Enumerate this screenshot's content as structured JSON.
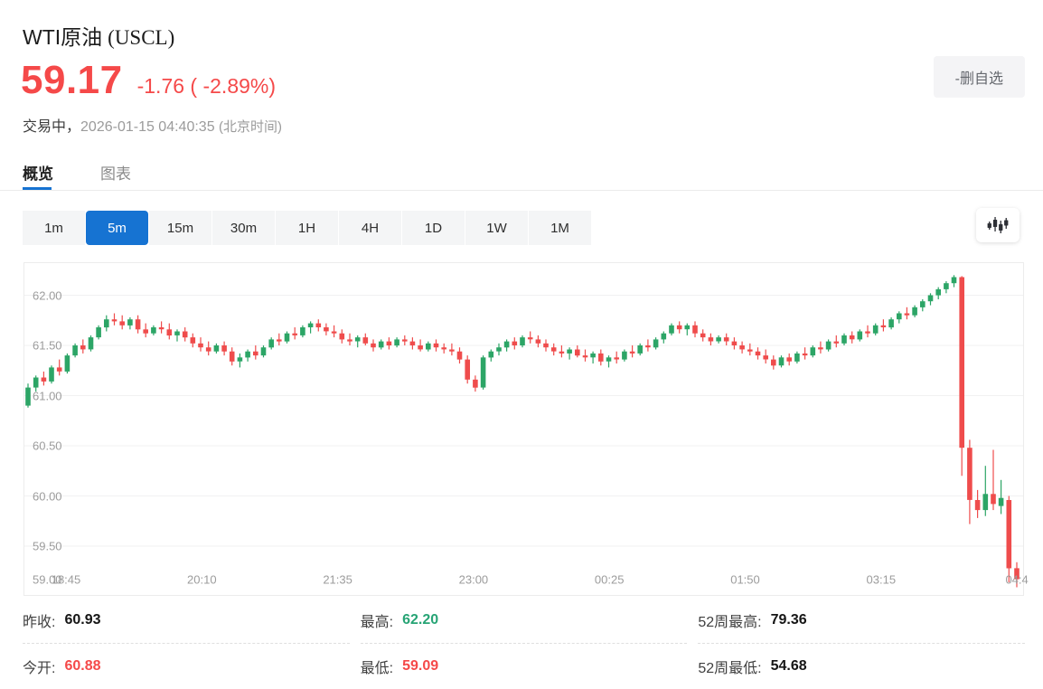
{
  "header": {
    "title": "WTI原油",
    "symbol": "(USCL)",
    "price": "59.17",
    "change": "-1.76 ( -2.89%)",
    "status": "交易中，",
    "datetime": "2026-01-15 04:40:35",
    "timezone": "(北京时间)",
    "remove_watchlist_label": "-删自选"
  },
  "tabs": {
    "overview": "概览",
    "chart": "图表"
  },
  "timeframes": [
    "1m",
    "5m",
    "15m",
    "30m",
    "1H",
    "4H",
    "1D",
    "1W",
    "1M"
  ],
  "selected_timeframe": "5m",
  "accent_blue": "#1673d2",
  "chart_data": {
    "type": "candlestick",
    "interval": "5m",
    "y_ticks": [
      "62.00",
      "61.50",
      "61.00",
      "60.50",
      "60.00",
      "59.50",
      "59.00"
    ],
    "x_ticks": [
      "18:45",
      "20:10",
      "21:35",
      "23:00",
      "00:25",
      "01:50",
      "03:15",
      "04:4"
    ],
    "ylim": [
      59.0,
      62.32
    ],
    "grid": true,
    "up_color": "#2ca566",
    "down_color": "#ef4c4c",
    "candles": [
      [
        60.9,
        61.12,
        60.88,
        61.08
      ],
      [
        61.08,
        61.2,
        61.04,
        61.18
      ],
      [
        61.18,
        61.24,
        61.1,
        61.14
      ],
      [
        61.14,
        61.3,
        61.12,
        61.28
      ],
      [
        61.28,
        61.36,
        61.2,
        61.24
      ],
      [
        61.24,
        61.42,
        61.22,
        61.4
      ],
      [
        61.4,
        61.52,
        61.38,
        61.5
      ],
      [
        61.5,
        61.56,
        61.42,
        61.46
      ],
      [
        61.46,
        61.6,
        61.44,
        61.58
      ],
      [
        61.58,
        61.7,
        61.56,
        61.68
      ],
      [
        61.68,
        61.8,
        61.64,
        61.76
      ],
      [
        61.76,
        61.82,
        61.7,
        61.74
      ],
      [
        61.74,
        61.8,
        61.66,
        61.7
      ],
      [
        61.7,
        61.78,
        61.66,
        61.76
      ],
      [
        61.76,
        61.8,
        61.62,
        61.66
      ],
      [
        61.66,
        61.72,
        61.58,
        61.62
      ],
      [
        61.62,
        61.7,
        61.6,
        61.68
      ],
      [
        61.68,
        61.74,
        61.62,
        61.66
      ],
      [
        61.66,
        61.72,
        61.56,
        61.6
      ],
      [
        61.6,
        61.66,
        61.54,
        61.64
      ],
      [
        61.64,
        61.68,
        61.54,
        61.58
      ],
      [
        61.58,
        61.62,
        61.48,
        61.52
      ],
      [
        61.52,
        61.58,
        61.44,
        61.48
      ],
      [
        61.48,
        61.54,
        61.4,
        61.44
      ],
      [
        61.44,
        61.52,
        61.42,
        61.5
      ],
      [
        61.5,
        61.54,
        61.4,
        61.44
      ],
      [
        61.44,
        61.48,
        61.3,
        61.34
      ],
      [
        61.34,
        61.42,
        61.28,
        61.38
      ],
      [
        61.38,
        61.46,
        61.34,
        61.44
      ],
      [
        61.44,
        61.5,
        61.36,
        61.4
      ],
      [
        61.4,
        61.5,
        61.38,
        61.48
      ],
      [
        61.48,
        61.58,
        61.46,
        61.56
      ],
      [
        61.56,
        61.62,
        61.5,
        61.54
      ],
      [
        61.54,
        61.64,
        61.52,
        61.62
      ],
      [
        61.62,
        61.68,
        61.56,
        61.6
      ],
      [
        61.6,
        61.7,
        61.58,
        61.68
      ],
      [
        61.68,
        61.74,
        61.62,
        61.72
      ],
      [
        61.72,
        61.76,
        61.64,
        61.68
      ],
      [
        61.68,
        61.72,
        61.6,
        61.64
      ],
      [
        61.64,
        61.7,
        61.58,
        61.62
      ],
      [
        61.62,
        61.66,
        61.52,
        61.56
      ],
      [
        61.56,
        61.62,
        61.5,
        61.54
      ],
      [
        61.54,
        61.6,
        61.48,
        61.58
      ],
      [
        61.58,
        61.62,
        61.5,
        61.52
      ],
      [
        61.52,
        61.56,
        61.44,
        61.48
      ],
      [
        61.48,
        61.56,
        61.46,
        61.54
      ],
      [
        61.54,
        61.58,
        61.46,
        61.5
      ],
      [
        61.5,
        61.58,
        61.48,
        61.56
      ],
      [
        61.56,
        61.6,
        61.5,
        61.54
      ],
      [
        61.54,
        61.58,
        61.46,
        61.5
      ],
      [
        61.5,
        61.56,
        61.44,
        61.46
      ],
      [
        61.46,
        61.54,
        61.44,
        61.52
      ],
      [
        61.52,
        61.56,
        61.44,
        61.48
      ],
      [
        61.48,
        61.52,
        61.42,
        61.46
      ],
      [
        61.46,
        61.52,
        61.4,
        61.44
      ],
      [
        61.44,
        61.48,
        61.32,
        61.36
      ],
      [
        61.36,
        61.4,
        61.12,
        61.16
      ],
      [
        61.16,
        61.2,
        61.04,
        61.08
      ],
      [
        61.08,
        61.4,
        61.06,
        61.38
      ],
      [
        61.38,
        61.46,
        61.34,
        61.44
      ],
      [
        61.44,
        61.52,
        61.4,
        61.48
      ],
      [
        61.48,
        61.56,
        61.44,
        61.54
      ],
      [
        61.54,
        61.58,
        61.46,
        61.5
      ],
      [
        61.5,
        61.6,
        61.48,
        61.58
      ],
      [
        61.58,
        61.64,
        61.52,
        61.56
      ],
      [
        61.56,
        61.6,
        61.48,
        61.52
      ],
      [
        61.52,
        61.56,
        61.44,
        61.48
      ],
      [
        61.48,
        61.52,
        61.4,
        61.44
      ],
      [
        61.44,
        61.5,
        61.38,
        61.42
      ],
      [
        61.42,
        61.48,
        61.36,
        61.46
      ],
      [
        61.46,
        61.5,
        61.38,
        61.4
      ],
      [
        61.4,
        61.46,
        61.34,
        61.38
      ],
      [
        61.38,
        61.44,
        61.32,
        61.42
      ],
      [
        61.42,
        61.46,
        61.3,
        61.34
      ],
      [
        61.34,
        61.4,
        61.28,
        61.38
      ],
      [
        61.38,
        61.44,
        61.32,
        61.36
      ],
      [
        61.36,
        61.46,
        61.34,
        61.44
      ],
      [
        61.44,
        61.5,
        61.38,
        61.42
      ],
      [
        61.42,
        61.52,
        61.4,
        61.5
      ],
      [
        61.5,
        61.56,
        61.44,
        61.48
      ],
      [
        61.48,
        61.58,
        61.46,
        61.56
      ],
      [
        61.56,
        61.64,
        61.52,
        61.62
      ],
      [
        61.62,
        61.72,
        61.6,
        61.7
      ],
      [
        61.7,
        61.74,
        61.62,
        61.66
      ],
      [
        61.66,
        61.72,
        61.6,
        61.7
      ],
      [
        61.7,
        61.74,
        61.58,
        61.62
      ],
      [
        61.62,
        61.66,
        61.54,
        61.58
      ],
      [
        61.58,
        61.62,
        61.5,
        61.54
      ],
      [
        61.54,
        61.6,
        61.52,
        61.58
      ],
      [
        61.58,
        61.62,
        61.5,
        61.54
      ],
      [
        61.54,
        61.58,
        61.46,
        61.5
      ],
      [
        61.5,
        61.54,
        61.42,
        61.46
      ],
      [
        61.46,
        61.52,
        61.4,
        61.44
      ],
      [
        61.44,
        61.48,
        61.36,
        61.4
      ],
      [
        61.4,
        61.46,
        61.32,
        61.36
      ],
      [
        61.36,
        61.4,
        61.26,
        61.3
      ],
      [
        61.3,
        61.4,
        61.28,
        61.38
      ],
      [
        61.38,
        61.42,
        61.3,
        61.34
      ],
      [
        61.34,
        61.44,
        61.32,
        61.42
      ],
      [
        61.42,
        61.48,
        61.36,
        61.4
      ],
      [
        61.4,
        61.5,
        61.38,
        61.48
      ],
      [
        61.48,
        61.54,
        61.42,
        61.46
      ],
      [
        61.46,
        61.56,
        61.44,
        61.54
      ],
      [
        61.54,
        61.6,
        61.48,
        61.52
      ],
      [
        61.52,
        61.62,
        61.5,
        61.6
      ],
      [
        61.6,
        61.64,
        61.52,
        61.56
      ],
      [
        61.56,
        61.66,
        61.54,
        61.64
      ],
      [
        61.64,
        61.7,
        61.58,
        61.62
      ],
      [
        61.62,
        61.72,
        61.6,
        61.7
      ],
      [
        61.7,
        61.76,
        61.64,
        61.68
      ],
      [
        61.68,
        61.78,
        61.66,
        61.76
      ],
      [
        61.76,
        61.84,
        61.72,
        61.82
      ],
      [
        61.82,
        61.88,
        61.76,
        61.8
      ],
      [
        61.8,
        61.9,
        61.78,
        61.88
      ],
      [
        61.88,
        61.96,
        61.84,
        61.94
      ],
      [
        61.94,
        62.02,
        61.9,
        62.0
      ],
      [
        62.0,
        62.08,
        61.96,
        62.06
      ],
      [
        62.06,
        62.14,
        62.02,
        62.12
      ],
      [
        62.12,
        62.2,
        62.08,
        62.18
      ],
      [
        62.18,
        62.19,
        60.2,
        60.48
      ],
      [
        60.48,
        60.56,
        59.72,
        59.96
      ],
      [
        59.96,
        60.06,
        59.78,
        59.86
      ],
      [
        59.86,
        60.3,
        59.8,
        60.02
      ],
      [
        60.02,
        60.46,
        59.86,
        59.92
      ],
      [
        59.9,
        60.16,
        59.82,
        59.98
      ],
      [
        59.96,
        60.0,
        59.14,
        59.28
      ],
      [
        59.28,
        59.34,
        59.09,
        59.17
      ]
    ]
  },
  "stats": {
    "columns": [
      {
        "rows": [
          {
            "label": "昨收:",
            "value": "60.93",
            "tone": "dark"
          },
          {
            "label": "今开:",
            "value": "60.88",
            "tone": "red"
          }
        ]
      },
      {
        "rows": [
          {
            "label": "最高:",
            "value": "62.20",
            "tone": "green"
          },
          {
            "label": "最低:",
            "value": "59.09",
            "tone": "red"
          }
        ]
      },
      {
        "rows": [
          {
            "label": "52周最高:",
            "value": "79.36",
            "tone": "dark"
          },
          {
            "label": "52周最低:",
            "value": "54.68",
            "tone": "dark"
          }
        ]
      }
    ]
  }
}
